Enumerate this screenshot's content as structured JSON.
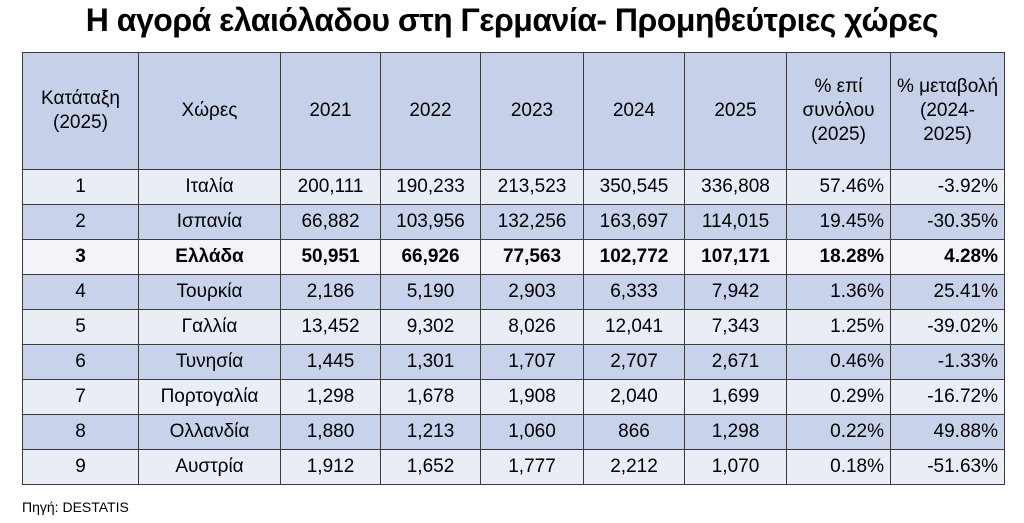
{
  "header": {
    "title": "Η αγορά ελαιόλαδου στη Γερμανία- Προμηθεύτριες χώρες"
  },
  "table": {
    "columns": [
      "Κατάταξη (2025)",
      "Χώρες",
      "2021",
      "2022",
      "2023",
      "2024",
      "2025",
      "% επί συνόλου (2025)",
      "% μεταβολή (2024-2025)"
    ],
    "rows": [
      [
        "1",
        "Ιταλία",
        "200,111",
        "190,233",
        "213,523",
        "350,545",
        "336,808",
        "57.46%",
        "-3.92%"
      ],
      [
        "2",
        "Ισπανία",
        "66,882",
        "103,956",
        "132,256",
        "163,697",
        "114,015",
        "19.45%",
        "-30.35%"
      ],
      [
        "3",
        "Ελλάδα",
        "50,951",
        "66,926",
        "77,563",
        "102,772",
        "107,171",
        "18.28%",
        "4.28%"
      ],
      [
        "4",
        "Τουρκία",
        "2,186",
        "5,190",
        "2,903",
        "6,333",
        "7,942",
        "1.36%",
        "25.41%"
      ],
      [
        "5",
        "Γαλλία",
        "13,452",
        "9,302",
        "8,026",
        "12,041",
        "7,343",
        "1.25%",
        "-39.02%"
      ],
      [
        "6",
        "Τυνησία",
        "1,445",
        "1,301",
        "1,707",
        "2,707",
        "2,671",
        "0.46%",
        "-1.33%"
      ],
      [
        "7",
        "Πορτογαλία",
        "1,298",
        "1,678",
        "1,908",
        "2,040",
        "1,699",
        "0.29%",
        "-16.72%"
      ],
      [
        "8",
        "Ολλανδία",
        "1,880",
        "1,213",
        "1,060",
        "866",
        "1,298",
        "0.22%",
        "49.88%"
      ],
      [
        "9",
        "Αυστρία",
        "1,912",
        "1,652",
        "1,777",
        "2,212",
        "1,070",
        "0.18%",
        "-51.63%"
      ]
    ]
  },
  "source": "Πηγή: DESTATIS"
}
